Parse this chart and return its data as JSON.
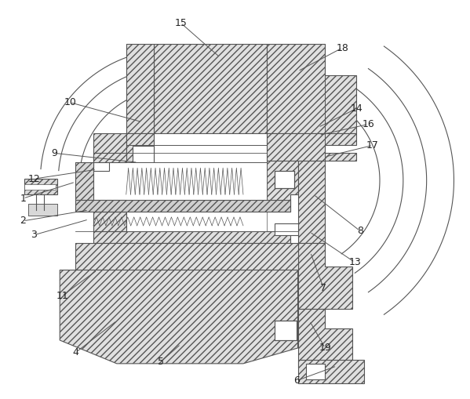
{
  "bg_color": "#ffffff",
  "line_color": "#555555",
  "figsize": [
    5.99,
    5.09
  ],
  "dpi": 100,
  "hatch_dense": "////",
  "hatch_light": "///",
  "leaders": [
    [
      "1",
      28,
      253,
      95,
      232
    ],
    [
      "2",
      28,
      282,
      112,
      268
    ],
    [
      "3",
      42,
      300,
      112,
      280
    ],
    [
      "4",
      95,
      451,
      148,
      410
    ],
    [
      "5",
      204,
      463,
      230,
      440
    ],
    [
      "6",
      378,
      487,
      430,
      468
    ],
    [
      "7",
      413,
      368,
      396,
      322
    ],
    [
      "8",
      460,
      295,
      400,
      248
    ],
    [
      "9",
      68,
      195,
      175,
      207
    ],
    [
      "10",
      88,
      130,
      180,
      155
    ],
    [
      "11",
      78,
      378,
      123,
      345
    ],
    [
      "12",
      42,
      228,
      122,
      216
    ],
    [
      "13",
      453,
      335,
      395,
      296
    ],
    [
      "14",
      455,
      138,
      406,
      162
    ],
    [
      "15",
      230,
      28,
      280,
      72
    ],
    [
      "16",
      470,
      158,
      407,
      172
    ],
    [
      "17",
      476,
      185,
      414,
      200
    ],
    [
      "18",
      437,
      60,
      380,
      90
    ],
    [
      "19",
      415,
      445,
      395,
      410
    ]
  ]
}
